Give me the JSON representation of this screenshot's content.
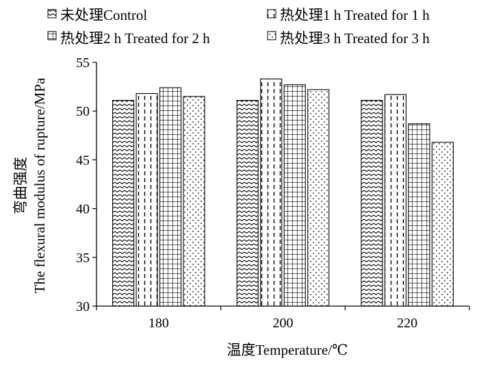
{
  "chart_data": {
    "type": "bar",
    "categories": [
      "180",
      "200",
      "220"
    ],
    "series": [
      {
        "name": "未处理Control",
        "pattern": "wave",
        "values": [
          51.1,
          51.1,
          51.1
        ]
      },
      {
        "name": "热处理1 h Treated for 1 h",
        "pattern": "dashed-vertical",
        "values": [
          51.8,
          53.3,
          51.7
        ]
      },
      {
        "name": "热处理2 h Treated for 2 h",
        "pattern": "grid",
        "values": [
          52.4,
          52.7,
          48.7
        ]
      },
      {
        "name": "热处理3 h Treated for 3 h",
        "pattern": "dots",
        "values": [
          51.5,
          52.2,
          46.8
        ]
      }
    ],
    "xlabel": "温度Temperature/℃",
    "ylabel_cn": "弯曲强度",
    "ylabel_en": "The flexural modulus of rupture/MPa",
    "ylim": [
      30,
      55
    ],
    "yticks": [
      30,
      35,
      40,
      45,
      50,
      55
    ],
    "grid": false,
    "legend_position": "top"
  }
}
